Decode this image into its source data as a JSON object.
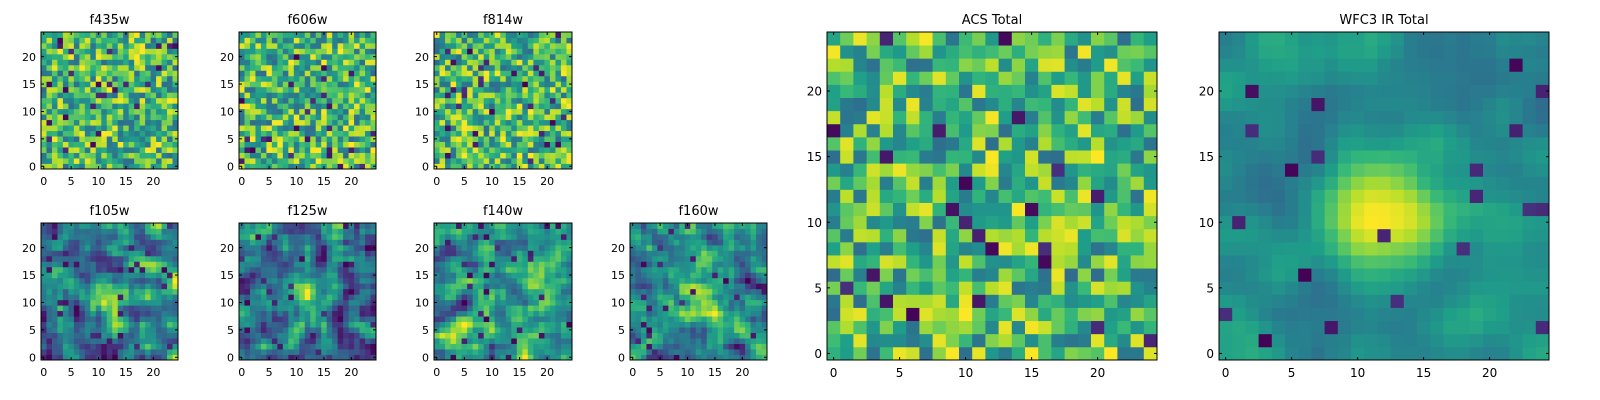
{
  "chart_data": [
    {
      "type": "heatmap",
      "title": "f435w",
      "colormap": "viridis",
      "xlim": [
        -0.5,
        24.5
      ],
      "ylim": [
        -0.5,
        24.5
      ],
      "xticks": [
        0,
        5,
        10,
        15,
        20
      ],
      "yticks": [
        0,
        5,
        10,
        15,
        20
      ],
      "origin": "lower",
      "pattern": "uniform noise"
    },
    {
      "type": "heatmap",
      "title": "f606w",
      "colormap": "viridis",
      "xlim": [
        -0.5,
        24.5
      ],
      "ylim": [
        -0.5,
        24.5
      ],
      "xticks": [
        0,
        5,
        10,
        15,
        20
      ],
      "yticks": [
        0,
        5,
        10,
        15,
        20
      ],
      "origin": "lower",
      "pattern": "uniform noise"
    },
    {
      "type": "heatmap",
      "title": "f814w",
      "colormap": "viridis",
      "xlim": [
        -0.5,
        24.5
      ],
      "ylim": [
        -0.5,
        24.5
      ],
      "xticks": [
        0,
        5,
        10,
        15,
        20
      ],
      "yticks": [
        0,
        5,
        10,
        15,
        20
      ],
      "origin": "lower",
      "pattern": "uniform noise"
    },
    {
      "type": "heatmap",
      "title": "f105w",
      "colormap": "viridis",
      "xlim": [
        -0.5,
        24.5
      ],
      "ylim": [
        -0.5,
        24.5
      ],
      "xticks": [
        0,
        5,
        10,
        15,
        20
      ],
      "yticks": [
        0,
        5,
        10,
        15,
        20
      ],
      "origin": "lower",
      "pattern": "smoothed noise, bright center"
    },
    {
      "type": "heatmap",
      "title": "f125w",
      "colormap": "viridis",
      "xlim": [
        -0.5,
        24.5
      ],
      "ylim": [
        -0.5,
        24.5
      ],
      "xticks": [
        0,
        5,
        10,
        15,
        20
      ],
      "yticks": [
        0,
        5,
        10,
        15,
        20
      ],
      "origin": "lower",
      "pattern": "smoothed noise, bright center"
    },
    {
      "type": "heatmap",
      "title": "f140w",
      "colormap": "viridis",
      "xlim": [
        -0.5,
        24.5
      ],
      "ylim": [
        -0.5,
        24.5
      ],
      "xticks": [
        0,
        5,
        10,
        15,
        20
      ],
      "yticks": [
        0,
        5,
        10,
        15,
        20
      ],
      "origin": "lower",
      "pattern": "smoothed noise"
    },
    {
      "type": "heatmap",
      "title": "f160w",
      "colormap": "viridis",
      "xlim": [
        -0.5,
        24.5
      ],
      "ylim": [
        -0.5,
        24.5
      ],
      "xticks": [
        0,
        5,
        10,
        15,
        20
      ],
      "yticks": [
        0,
        5,
        10,
        15,
        20
      ],
      "origin": "lower",
      "pattern": "smoothed noise, bright center"
    },
    {
      "type": "heatmap",
      "title": "ACS Total",
      "colormap": "viridis",
      "xlim": [
        -0.5,
        24.5
      ],
      "ylim": [
        -0.5,
        24.5
      ],
      "xticks": [
        0,
        5,
        10,
        15,
        20
      ],
      "yticks": [
        0,
        5,
        10,
        15,
        20
      ],
      "origin": "lower",
      "pattern": "uniform noise, sparse dark pixels"
    },
    {
      "type": "heatmap",
      "title": "WFC3 IR Total",
      "colormap": "viridis",
      "xlim": [
        -0.5,
        24.5
      ],
      "ylim": [
        -0.5,
        24.5
      ],
      "xticks": [
        0,
        5,
        10,
        15,
        20
      ],
      "yticks": [
        0,
        5,
        10,
        15,
        20
      ],
      "origin": "lower",
      "pattern": "smooth, bright source at center"
    }
  ]
}
